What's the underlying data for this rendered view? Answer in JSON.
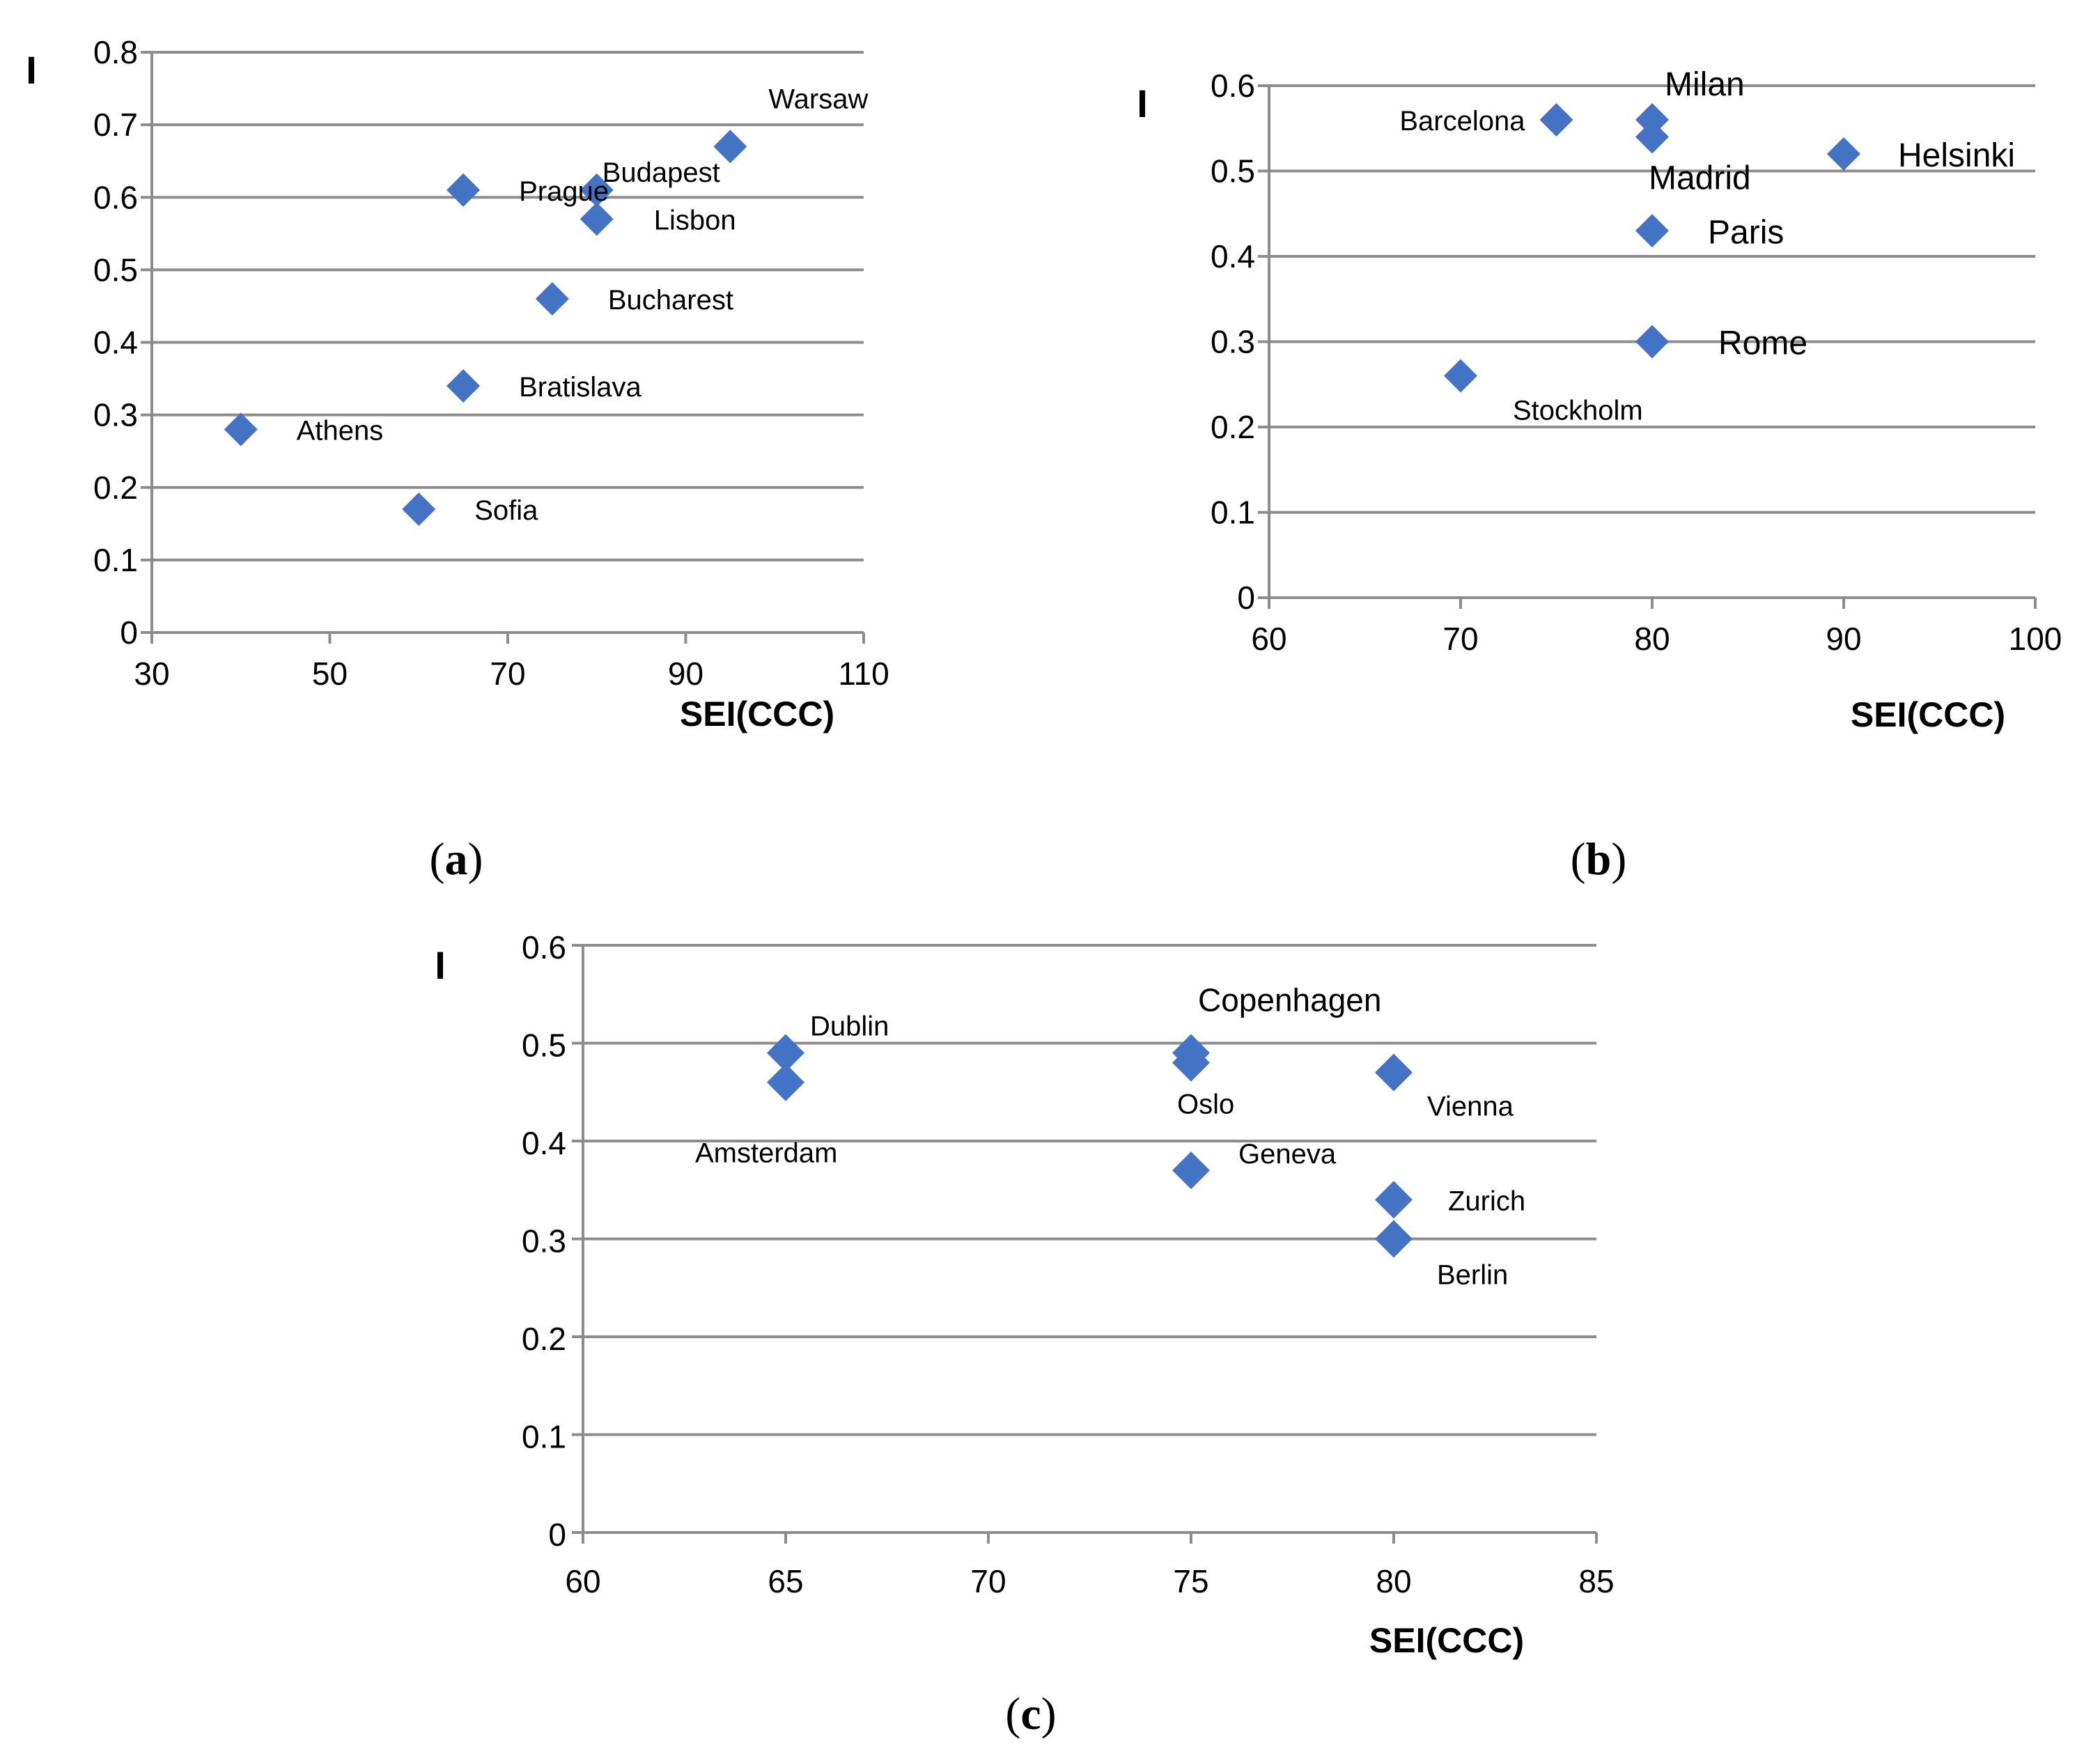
{
  "colors": {
    "marker": "#4472C4",
    "grid": "#8C8C8C",
    "axis": "#8C8C8C"
  },
  "chart_data": [
    {
      "id": "a",
      "type": "scatter",
      "caption": "a",
      "xlabel": "SEI(CCC)",
      "ylabel": "I",
      "xlim": [
        30,
        110
      ],
      "ylim": [
        0,
        0.8
      ],
      "xticks": [
        30,
        50,
        70,
        90,
        110
      ],
      "yticks": [
        0,
        0.1,
        0.2,
        0.3,
        0.4,
        0.5,
        0.6,
        0.7,
        0.8
      ],
      "xtick_labels": [
        "30",
        "50",
        "70",
        "90",
        "110"
      ],
      "ytick_labels": [
        "0",
        "0.1",
        "0.2",
        "0.3",
        "0.4",
        "0.5",
        "0.6",
        "0.7",
        "0.8"
      ],
      "grid": "horizontal",
      "points": [
        {
          "label": "Warsaw",
          "x": 95,
          "y": 0.67
        },
        {
          "label": "Budapest",
          "x": 80,
          "y": 0.61
        },
        {
          "label": "Prague",
          "x": 65,
          "y": 0.61
        },
        {
          "label": "Lisbon",
          "x": 80,
          "y": 0.57
        },
        {
          "label": "Bucharest",
          "x": 75,
          "y": 0.46
        },
        {
          "label": "Bratislava",
          "x": 65,
          "y": 0.34
        },
        {
          "label": "Athens",
          "x": 40,
          "y": 0.28
        },
        {
          "label": "Sofia",
          "x": 60,
          "y": 0.17
        }
      ]
    },
    {
      "id": "b",
      "type": "scatter",
      "caption": "b",
      "xlabel": "SEI(CCC)",
      "ylabel": "I",
      "xlim": [
        60,
        100
      ],
      "ylim": [
        0,
        0.6
      ],
      "xticks": [
        60,
        70,
        80,
        90,
        100
      ],
      "yticks": [
        0,
        0.1,
        0.2,
        0.3,
        0.4,
        0.5,
        0.6
      ],
      "xtick_labels": [
        "60",
        "70",
        "80",
        "90",
        "100"
      ],
      "ytick_labels": [
        "0",
        "0.1",
        "0.2",
        "0.3",
        "0.4",
        "0.5",
        "0.6"
      ],
      "grid": "horizontal",
      "points": [
        {
          "label": "Milan",
          "x": 80,
          "y": 0.56
        },
        {
          "label": "Barcelona",
          "x": 75,
          "y": 0.56
        },
        {
          "label": "Madrid",
          "x": 80,
          "y": 0.54
        },
        {
          "label": "Helsinki",
          "x": 90,
          "y": 0.52
        },
        {
          "label": "Paris",
          "x": 80,
          "y": 0.43
        },
        {
          "label": "Rome",
          "x": 80,
          "y": 0.3
        },
        {
          "label": "Stockholm",
          "x": 70,
          "y": 0.26
        }
      ]
    },
    {
      "id": "c",
      "type": "scatter",
      "caption": "c",
      "xlabel": "SEI(CCC)",
      "ylabel": "I",
      "xlim": [
        60,
        85
      ],
      "ylim": [
        0,
        0.6
      ],
      "xticks": [
        60,
        65,
        70,
        75,
        80,
        85
      ],
      "yticks": [
        0,
        0.1,
        0.2,
        0.3,
        0.4,
        0.5,
        0.6
      ],
      "xtick_labels": [
        "60",
        "65",
        "70",
        "75",
        "80",
        "85"
      ],
      "ytick_labels": [
        "0",
        "0.1",
        "0.2",
        "0.3",
        "0.4",
        "0.5",
        "0.6"
      ],
      "grid": "horizontal",
      "points": [
        {
          "label": "Dublin",
          "x": 65,
          "y": 0.49
        },
        {
          "label": "Amsterdam",
          "x": 65,
          "y": 0.46
        },
        {
          "label": "Copenhagen",
          "x": 75,
          "y": 0.49
        },
        {
          "label": "Oslo",
          "x": 75,
          "y": 0.48
        },
        {
          "label": "Vienna",
          "x": 80,
          "y": 0.47
        },
        {
          "label": "Geneva",
          "x": 75,
          "y": 0.37
        },
        {
          "label": "Zurich",
          "x": 80,
          "y": 0.34
        },
        {
          "label": "Berlin",
          "x": 80,
          "y": 0.3
        }
      ]
    }
  ]
}
